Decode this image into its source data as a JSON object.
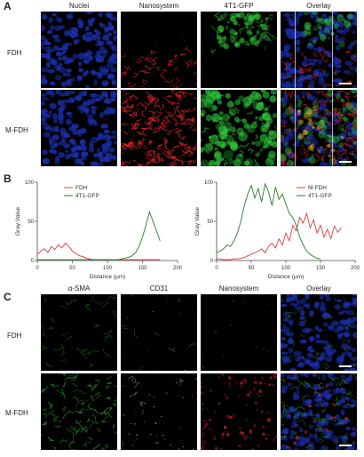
{
  "panels": {
    "A": {
      "letter": "A",
      "columns": [
        "Nuclei",
        "Nanosystem",
        "4T1-GFP",
        "Overlay"
      ],
      "rows": [
        "FDH",
        "M-FDH"
      ]
    },
    "B": {
      "letter": "B"
    },
    "C": {
      "letter": "C",
      "columns": [
        "α-SMA",
        "CD31",
        "Nanosystem",
        "Overlay"
      ],
      "rows": [
        "FDH",
        "M-FDH"
      ]
    }
  },
  "colors": {
    "nuclei": "#1a2ea8",
    "nanosystem": "#e0242a",
    "gfp": "#2ec83a",
    "asma": "#2a9a2a",
    "cd31": "#e8e8e8",
    "red_line": "#e03a3a",
    "green_line": "#2a7a2a"
  },
  "chart_data": [
    {
      "type": "line",
      "xlabel": "Distance (μm)",
      "ylabel": "Gray Value",
      "xlim": [
        0,
        200
      ],
      "ylim": [
        0,
        100
      ],
      "xticks": [
        0,
        50,
        100,
        150,
        200
      ],
      "yticks": [
        0,
        50,
        100
      ],
      "legend": "top-left",
      "series": [
        {
          "name": "FDH",
          "color": "#e03a3a",
          "x": [
            0,
            5,
            10,
            15,
            20,
            25,
            30,
            35,
            40,
            45,
            50,
            55,
            60,
            65,
            70,
            75,
            80,
            85,
            90,
            95,
            100,
            105,
            110,
            115,
            120,
            125,
            130,
            135,
            140,
            145,
            150,
            155,
            160,
            165,
            170,
            175
          ],
          "values": [
            8,
            12,
            15,
            10,
            18,
            14,
            20,
            16,
            22,
            18,
            12,
            9,
            6,
            5,
            3,
            2,
            1,
            1,
            1,
            1,
            1,
            1,
            1,
            1,
            1,
            1,
            1,
            1,
            1,
            1,
            1,
            1,
            1,
            1,
            1,
            1
          ]
        },
        {
          "name": "4T1-GFP",
          "color": "#2a7a2a",
          "x": [
            0,
            5,
            10,
            15,
            20,
            25,
            30,
            35,
            40,
            45,
            50,
            55,
            60,
            65,
            70,
            75,
            80,
            85,
            90,
            95,
            100,
            105,
            110,
            115,
            120,
            125,
            130,
            135,
            140,
            145,
            150,
            155,
            160,
            165,
            170,
            175
          ],
          "values": [
            1,
            1,
            1,
            1,
            1,
            1,
            1,
            1,
            1,
            1,
            1,
            1,
            1,
            1,
            1,
            1,
            1,
            1,
            1,
            1,
            1,
            1,
            1,
            1,
            2,
            3,
            4,
            6,
            10,
            18,
            30,
            45,
            62,
            50,
            38,
            25
          ]
        }
      ]
    },
    {
      "type": "line",
      "xlabel": "Distance (μm)",
      "ylabel": "Gray Value",
      "xlim": [
        0,
        200
      ],
      "ylim": [
        0,
        100
      ],
      "xticks": [
        0,
        50,
        100,
        150,
        200
      ],
      "yticks": [
        0,
        50,
        100
      ],
      "legend": "top-right",
      "series": [
        {
          "name": "M-FDH",
          "color": "#e03a3a",
          "x": [
            0,
            5,
            10,
            15,
            20,
            25,
            30,
            35,
            40,
            45,
            50,
            55,
            60,
            65,
            70,
            75,
            80,
            85,
            90,
            95,
            100,
            105,
            110,
            115,
            120,
            125,
            130,
            135,
            140,
            145,
            150,
            155,
            160,
            165,
            170,
            175,
            180
          ],
          "values": [
            2,
            2,
            1,
            1,
            1,
            2,
            2,
            3,
            4,
            6,
            8,
            10,
            12,
            15,
            10,
            18,
            22,
            16,
            28,
            20,
            35,
            25,
            45,
            38,
            55,
            48,
            60,
            42,
            52,
            35,
            45,
            30,
            40,
            28,
            44,
            36,
            42
          ]
        },
        {
          "name": "4T1-GFP",
          "color": "#2a7a2a",
          "x": [
            0,
            5,
            10,
            15,
            20,
            25,
            30,
            35,
            40,
            45,
            50,
            55,
            60,
            65,
            70,
            75,
            80,
            85,
            90,
            95,
            100,
            105,
            110,
            115,
            120,
            125,
            130,
            135,
            140,
            145,
            150
          ],
          "values": [
            10,
            12,
            15,
            20,
            18,
            25,
            35,
            50,
            70,
            85,
            96,
            80,
            92,
            75,
            98,
            88,
            70,
            94,
            78,
            85,
            72,
            60,
            55,
            45,
            30,
            20,
            12,
            8,
            5,
            3,
            2
          ]
        }
      ]
    }
  ]
}
